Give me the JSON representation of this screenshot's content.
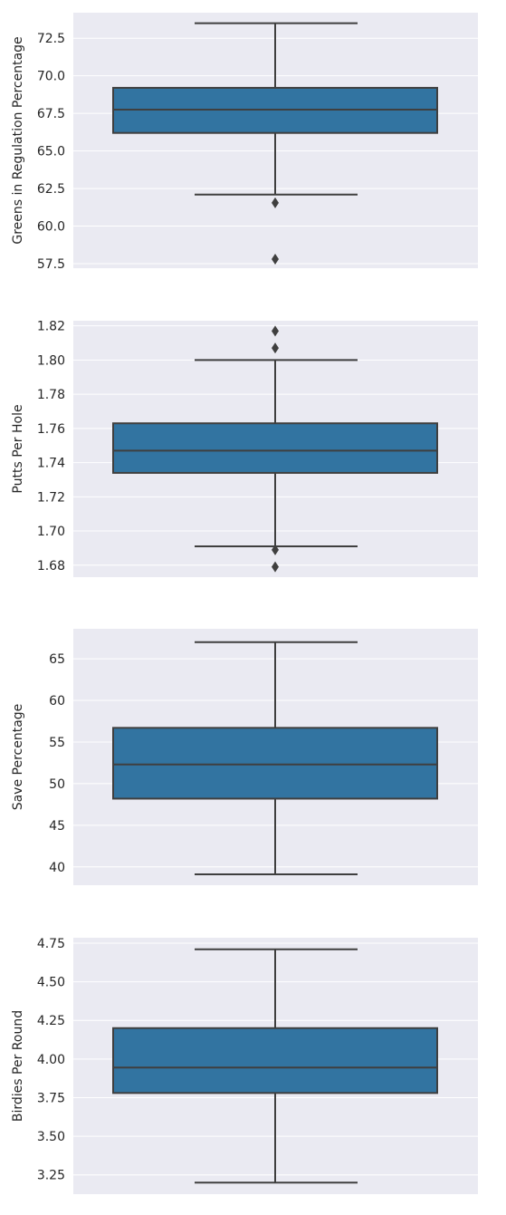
{
  "chart_data": [
    {
      "type": "box",
      "xlabel": "",
      "ylabel": "Greens in Regulation Percentage",
      "ylim": [
        57.2,
        74.2
      ],
      "yticks": [
        57.5,
        60.0,
        62.5,
        65.0,
        67.5,
        70.0,
        72.5
      ],
      "ytick_labels": [
        "57.5",
        "60.0",
        "62.5",
        "65.0",
        "67.5",
        "70.0",
        "72.5"
      ],
      "grid": true,
      "color": "#3274a1",
      "stats": {
        "whislo": 62.1,
        "q1": 66.2,
        "med": 67.75,
        "q3": 69.2,
        "whishi": 73.5
      },
      "outliers": [
        61.55,
        57.8
      ]
    },
    {
      "type": "box",
      "xlabel": "",
      "ylabel": "Putts Per Hole",
      "ylim": [
        1.673,
        1.823
      ],
      "yticks": [
        1.68,
        1.7,
        1.72,
        1.74,
        1.76,
        1.78,
        1.8,
        1.82
      ],
      "ytick_labels": [
        "1.68",
        "1.70",
        "1.72",
        "1.74",
        "1.76",
        "1.78",
        "1.80",
        "1.82"
      ],
      "grid": true,
      "color": "#3274a1",
      "stats": {
        "whislo": 1.691,
        "q1": 1.734,
        "med": 1.747,
        "q3": 1.763,
        "whishi": 1.8
      },
      "outliers": [
        1.817,
        1.807,
        1.689,
        1.679
      ]
    },
    {
      "type": "box",
      "xlabel": "",
      "ylabel": "Save Percentage",
      "ylim": [
        37.8,
        68.6
      ],
      "yticks": [
        40,
        45,
        50,
        55,
        60,
        65
      ],
      "ytick_labels": [
        "40",
        "45",
        "50",
        "55",
        "60",
        "65"
      ],
      "grid": true,
      "color": "#3274a1",
      "stats": {
        "whislo": 39.1,
        "q1": 48.2,
        "med": 52.3,
        "q3": 56.7,
        "whishi": 67.0
      },
      "outliers": []
    },
    {
      "type": "box",
      "xlabel": "",
      "ylabel": "Birdies Per Round",
      "ylim": [
        3.125,
        4.785
      ],
      "yticks": [
        3.25,
        3.5,
        3.75,
        4.0,
        4.25,
        4.5,
        4.75
      ],
      "ytick_labels": [
        "3.25",
        "3.50",
        "3.75",
        "4.00",
        "4.25",
        "4.50",
        "4.75"
      ],
      "grid": true,
      "color": "#3274a1",
      "stats": {
        "whislo": 3.2,
        "q1": 3.78,
        "med": 3.945,
        "q3": 4.2,
        "whishi": 4.71
      },
      "outliers": []
    }
  ]
}
